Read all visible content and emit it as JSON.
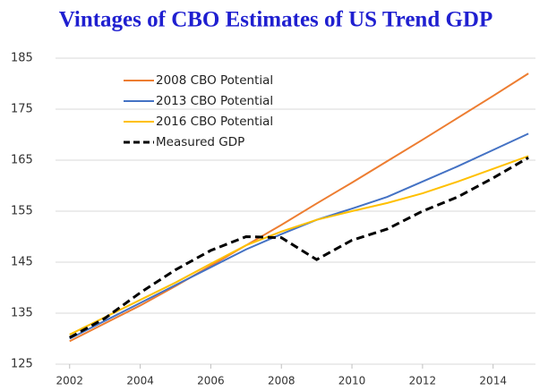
{
  "chart_data": {
    "type": "line",
    "title": "Vintages of CBO Estimates of US Trend GDP",
    "x": [
      2002,
      2003,
      2004,
      2005,
      2006,
      2007,
      2008,
      2009,
      2010,
      2011,
      2012,
      2013,
      2014,
      2015
    ],
    "series": [
      {
        "name": "2008 CBO Potential",
        "color": "#ed7d31",
        "dash": false,
        "values": [
          129.5,
          133.0,
          136.5,
          140.3,
          144.3,
          148.3,
          152.3,
          156.5,
          160.6,
          164.8,
          169.0,
          173.3,
          177.6,
          182.0
        ]
      },
      {
        "name": "2013 CBO Potential",
        "color": "#4472c4",
        "dash": false,
        "values": [
          130.0,
          133.5,
          137.0,
          140.5,
          144.0,
          147.5,
          150.5,
          153.3,
          155.5,
          157.8,
          160.8,
          163.8,
          167.0,
          170.2
        ]
      },
      {
        "name": "2016 CBO Potential",
        "color": "#ffc000",
        "dash": false,
        "values": [
          130.8,
          134.2,
          137.6,
          141.0,
          144.7,
          148.3,
          151.0,
          153.3,
          155.0,
          156.6,
          158.5,
          160.8,
          163.3,
          165.8
        ]
      },
      {
        "name": "Measured GDP",
        "color": "#000000",
        "dash": true,
        "values": [
          130.2,
          134.0,
          139.0,
          143.5,
          147.3,
          150.0,
          149.8,
          145.5,
          149.3,
          151.5,
          155.0,
          157.8,
          161.5,
          165.5
        ]
      }
    ],
    "xlim": [
      2001.6,
      2015.2
    ],
    "xticks": [
      2002,
      2004,
      2006,
      2008,
      2010,
      2012,
      2014
    ],
    "ylim": [
      125,
      185
    ],
    "yticks": [
      125,
      135,
      145,
      155,
      165,
      175,
      185
    ],
    "grid": true,
    "legend": "upper left"
  }
}
